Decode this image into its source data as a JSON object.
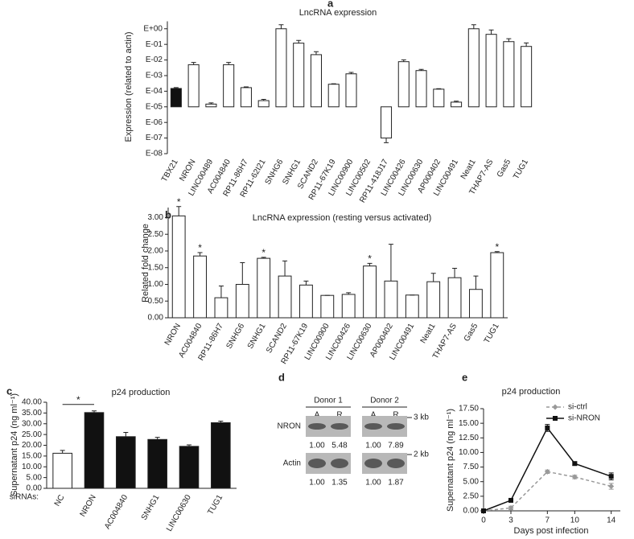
{
  "chart_data": [
    {
      "type": "bar",
      "panel": "a",
      "title": "LncRNA expression",
      "ylabel": "Expression (related to actin)",
      "log": true,
      "baseline": 1e-05,
      "categories": [
        "TBX21",
        "NRON",
        "LINC00489",
        "AC004840",
        "RP11-86H7",
        "RP11-62I21",
        "SNHG6",
        "SNHG1",
        "SCAND2",
        "RP11-67K19",
        "LINC00900",
        "LINC00502",
        "RP11-418J17",
        "LINC00426",
        "LINC00630",
        "AP000402",
        "LINC00491",
        "Neat1",
        "THAP7-AS",
        "Gas5",
        "TUG1"
      ],
      "values": [
        0.00015,
        0.005,
        1.5e-05,
        0.005,
        0.00017,
        2.5e-05,
        1.0,
        0.12,
        0.022,
        0.00028,
        0.0013,
        null,
        1e-07,
        0.0078,
        0.0021,
        0.000135,
        2e-05,
        1.0,
        0.44,
        0.15,
        0.074
      ],
      "errors": [
        2e-05,
        0.002,
        3e-06,
        0.002,
        2e-05,
        5e-06,
        0.8,
        0.06,
        0.012,
        2e-05,
        0.0003,
        null,
        5e-08,
        0.0025,
        0.0004,
        1e-05,
        3e-06,
        0.8,
        0.4,
        0.08,
        0.05
      ],
      "colors": [
        "#111111",
        "#ffffff",
        "#ffffff",
        "#ffffff",
        "#ffffff",
        "#ffffff",
        "#ffffff",
        "#ffffff",
        "#ffffff",
        "#ffffff",
        "#ffffff",
        "#ffffff",
        "#ffffff",
        "#ffffff",
        "#ffffff",
        "#ffffff",
        "#ffffff",
        "#ffffff",
        "#ffffff",
        "#ffffff",
        "#ffffff"
      ],
      "ylim": [
        1e-08,
        3
      ],
      "yticks": [
        {
          "value": 1,
          "label": "E+00"
        },
        {
          "value": 0.1,
          "label": "E-01"
        },
        {
          "value": 0.01,
          "label": "E-02"
        },
        {
          "value": 0.001,
          "label": "E-03"
        },
        {
          "value": 0.0001,
          "label": "E-04"
        },
        {
          "value": 1e-05,
          "label": "E-05"
        },
        {
          "value": 1e-06,
          "label": "E-06"
        },
        {
          "value": 1e-07,
          "label": "E-07"
        },
        {
          "value": 1e-08,
          "label": "E-08"
        }
      ]
    },
    {
      "type": "bar",
      "panel": "b",
      "title": "LncRNA expression (resting versus activated)",
      "ylabel": "Related fold change",
      "color": "#ffffff",
      "categories": [
        "NRON",
        "AC004840",
        "RP11-86H7",
        "SNHG6",
        "SNHG1",
        "SCAND2",
        "RP11-67K19",
        "LINC00900",
        "LINC00426",
        "LINC00630",
        "AP000402",
        "LINC00491",
        "Neat1",
        "THAP7-AS",
        "Gas5",
        "TUG1"
      ],
      "values": [
        3.05,
        1.85,
        0.6,
        1.0,
        1.78,
        1.25,
        0.98,
        0.67,
        0.7,
        1.55,
        1.1,
        0.68,
        1.08,
        1.2,
        0.85,
        1.95
      ],
      "errors": [
        0.28,
        0.1,
        0.35,
        0.65,
        0.03,
        0.45,
        0.12,
        0,
        0.05,
        0.08,
        1.1,
        0,
        0.25,
        0.28,
        0.4,
        0.03
      ],
      "significance": [
        "*",
        "*",
        null,
        null,
        "*",
        null,
        null,
        null,
        null,
        "*",
        null,
        null,
        null,
        null,
        null,
        "*"
      ],
      "ylim": [
        0,
        3.3
      ],
      "yticks": [
        {
          "value": 0,
          "label": "0.00"
        },
        {
          "value": 0.5,
          "label": "0.50"
        },
        {
          "value": 1,
          "label": "1.00"
        },
        {
          "value": 1.5,
          "label": "1.50"
        },
        {
          "value": 2,
          "label": "2.00"
        },
        {
          "value": 2.5,
          "label": "2.50"
        },
        {
          "value": 3,
          "label": "3.00"
        }
      ]
    },
    {
      "type": "bar",
      "panel": "c",
      "title": "p24 production",
      "ylabel": "Supernatant p24 (ng ml⁻¹)",
      "xlabel": "siRNAs:",
      "categories": [
        "NC",
        "NRON",
        "AC004840",
        "SNHG1",
        "LINC00630",
        "TUG1"
      ],
      "values": [
        16.3,
        35.2,
        24.0,
        22.7,
        19.5,
        30.5
      ],
      "errors": [
        1.3,
        0.8,
        2.0,
        1.0,
        0.7,
        0.7
      ],
      "colors": [
        "#ffffff",
        "#111111",
        "#111111",
        "#111111",
        "#111111",
        "#111111"
      ],
      "bracket": {
        "label": "*",
        "categories": [
          "NC",
          "NRON"
        ]
      },
      "ylim": [
        0,
        40
      ],
      "yticks": [
        {
          "value": 0,
          "label": "0.00"
        },
        {
          "value": 5,
          "label": "5.00"
        },
        {
          "value": 10,
          "label": "10.00"
        },
        {
          "value": 15,
          "label": "15.00"
        },
        {
          "value": 20,
          "label": "20.00"
        },
        {
          "value": 25,
          "label": "25.00"
        },
        {
          "value": 30,
          "label": "30.00"
        },
        {
          "value": 35,
          "label": "35.00"
        },
        {
          "value": 40,
          "label": "40.00"
        }
      ]
    },
    {
      "type": "blot",
      "panel": "d",
      "donors": [
        "Donor 1",
        "Donor 2"
      ],
      "lanes": [
        "A",
        "R",
        "A",
        "R"
      ],
      "markers": [
        "3 kb",
        "2 kb"
      ],
      "rows": [
        {
          "label": "NRON",
          "values": [
            "1.00",
            "5.48",
            "1.00",
            "7.89"
          ]
        },
        {
          "label": "Actin",
          "values": [
            "1.00",
            "1.35",
            "1.00",
            "1.87"
          ]
        }
      ]
    },
    {
      "type": "line",
      "panel": "e",
      "title": "p24 production",
      "ylabel": "Supernatant p24 (ng ml⁻¹)",
      "xlabel": "Days post infection",
      "x": [
        0,
        3,
        7,
        10,
        14
      ],
      "series": [
        {
          "name": "si-ctrl",
          "color": "#999999",
          "dash": true,
          "marker": "diamond",
          "values": [
            0,
            0.5,
            6.7,
            5.8,
            4.2
          ],
          "errors": [
            0,
            0.3,
            0.3,
            0.3,
            0.5
          ]
        },
        {
          "name": "si-NRON",
          "color": "#111111",
          "dash": false,
          "marker": "square",
          "values": [
            0,
            1.8,
            14.2,
            8.1,
            5.9
          ],
          "errors": [
            0,
            0.2,
            0.6,
            0.3,
            0.6
          ]
        }
      ],
      "xlim": [
        0,
        15
      ],
      "xticks": [
        0,
        3,
        7,
        10,
        14
      ],
      "ylim": [
        0,
        17.5
      ],
      "yticks": [
        {
          "value": 0,
          "label": "0.00"
        },
        {
          "value": 2.5,
          "label": "2.50"
        },
        {
          "value": 5,
          "label": "5.00"
        },
        {
          "value": 7.5,
          "label": "7.50"
        },
        {
          "value": 10,
          "label": "10.00"
        },
        {
          "value": 12.5,
          "label": "12.50"
        },
        {
          "value": 15,
          "label": "15.00"
        },
        {
          "value": 17.5,
          "label": "17.50"
        }
      ]
    }
  ]
}
